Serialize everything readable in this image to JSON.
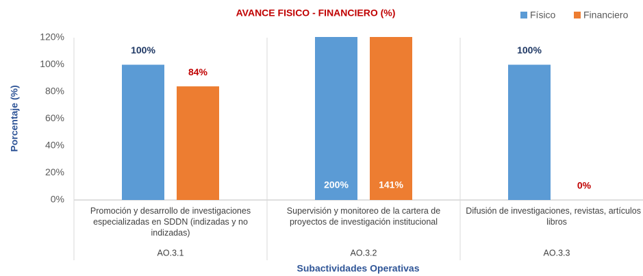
{
  "chart_data": {
    "type": "bar",
    "title": "AVANCE FISICO - FINANCIERO (%)",
    "y_label": "Porcentaje (%)",
    "x_label": "Subactividades Operativas",
    "categories": [
      "Promoción y desarrollo de investigaciones especializadas en SDDN (indizadas y no indizadas)",
      "Supervisión y monitoreo de la cartera de proyectos de investigación institucional",
      "Difusión de investigaciones, revistas, artículos y libros"
    ],
    "groups": [
      "AO.3.1",
      "AO.3.2",
      "AO.3.3"
    ],
    "series": [
      {
        "name": "Físico",
        "color": "#5b9bd5",
        "label_color": "#1f3864",
        "values": [
          100,
          200,
          100
        ],
        "value_labels": [
          "100%",
          "200%",
          "100%"
        ]
      },
      {
        "name": "Financiero",
        "color": "#ed7d31",
        "label_color": "#c00000",
        "values": [
          84,
          141,
          0
        ],
        "value_labels": [
          "84%",
          "141%",
          "0%"
        ]
      }
    ],
    "ylim": [
      0,
      120
    ],
    "yticks": [
      {
        "value": 0,
        "label": "0%"
      },
      {
        "value": 20,
        "label": "20%"
      },
      {
        "value": 40,
        "label": "40%"
      },
      {
        "value": 60,
        "label": "60%"
      },
      {
        "value": 80,
        "label": "80%"
      },
      {
        "value": 100,
        "label": "100%"
      },
      {
        "value": 120,
        "label": "120%"
      }
    ],
    "legend": "top-right"
  }
}
